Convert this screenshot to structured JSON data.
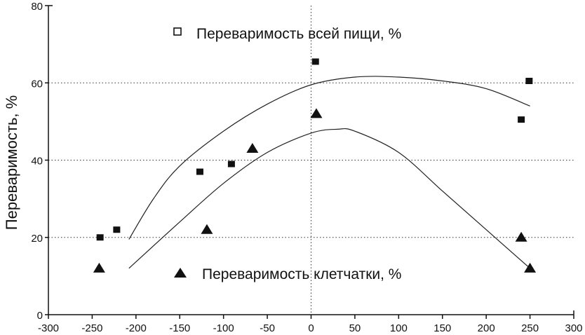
{
  "chart_data": {
    "type": "scatter",
    "title": "",
    "xlabel": "",
    "ylabel": "Переваримость, %",
    "xlim": [
      -300,
      300
    ],
    "ylim": [
      0,
      80
    ],
    "xticks": [
      "-300",
      "-250",
      "-200",
      "-150",
      "-100",
      "-50",
      "0",
      "50",
      "100",
      "150",
      "200",
      "250",
      "300"
    ],
    "yticks": [
      "0",
      "20",
      "40",
      "60",
      "80"
    ],
    "grid": "dotted at y=20,40,60 and x=0",
    "series": [
      {
        "name": "Переваримость всей пищи, %",
        "marker": "square",
        "points": [
          {
            "x": -241,
            "y": 20
          },
          {
            "x": -222,
            "y": 22
          },
          {
            "x": -127,
            "y": 37
          },
          {
            "x": -91,
            "y": 39
          },
          {
            "x": 5,
            "y": 65.5
          },
          {
            "x": 240,
            "y": 50.5
          },
          {
            "x": 249,
            "y": 60.5
          }
        ],
        "curve": [
          {
            "x": -208,
            "y": 19.5
          },
          {
            "x": -180,
            "y": 30
          },
          {
            "x": -150,
            "y": 38.5
          },
          {
            "x": -100,
            "y": 47.5
          },
          {
            "x": -50,
            "y": 54.5
          },
          {
            "x": 0,
            "y": 59.5
          },
          {
            "x": 50,
            "y": 61.5
          },
          {
            "x": 100,
            "y": 61.5
          },
          {
            "x": 150,
            "y": 60.5
          },
          {
            "x": 200,
            "y": 58.5
          },
          {
            "x": 250,
            "y": 54
          }
        ]
      },
      {
        "name": "Переваримость клетчатки, %",
        "marker": "triangle",
        "points": [
          {
            "x": -242,
            "y": 12
          },
          {
            "x": -119,
            "y": 22
          },
          {
            "x": -67,
            "y": 43
          },
          {
            "x": 6,
            "y": 52
          },
          {
            "x": 240,
            "y": 20
          },
          {
            "x": 250,
            "y": 12
          }
        ],
        "curve": [
          {
            "x": -208,
            "y": 12
          },
          {
            "x": -150,
            "y": 24
          },
          {
            "x": -100,
            "y": 34
          },
          {
            "x": -50,
            "y": 42
          },
          {
            "x": 0,
            "y": 47
          },
          {
            "x": 30,
            "y": 48
          },
          {
            "x": 50,
            "y": 47.5
          },
          {
            "x": 100,
            "y": 42
          },
          {
            "x": 150,
            "y": 32
          },
          {
            "x": 200,
            "y": 22
          },
          {
            "x": 250,
            "y": 12
          }
        ]
      }
    ]
  }
}
